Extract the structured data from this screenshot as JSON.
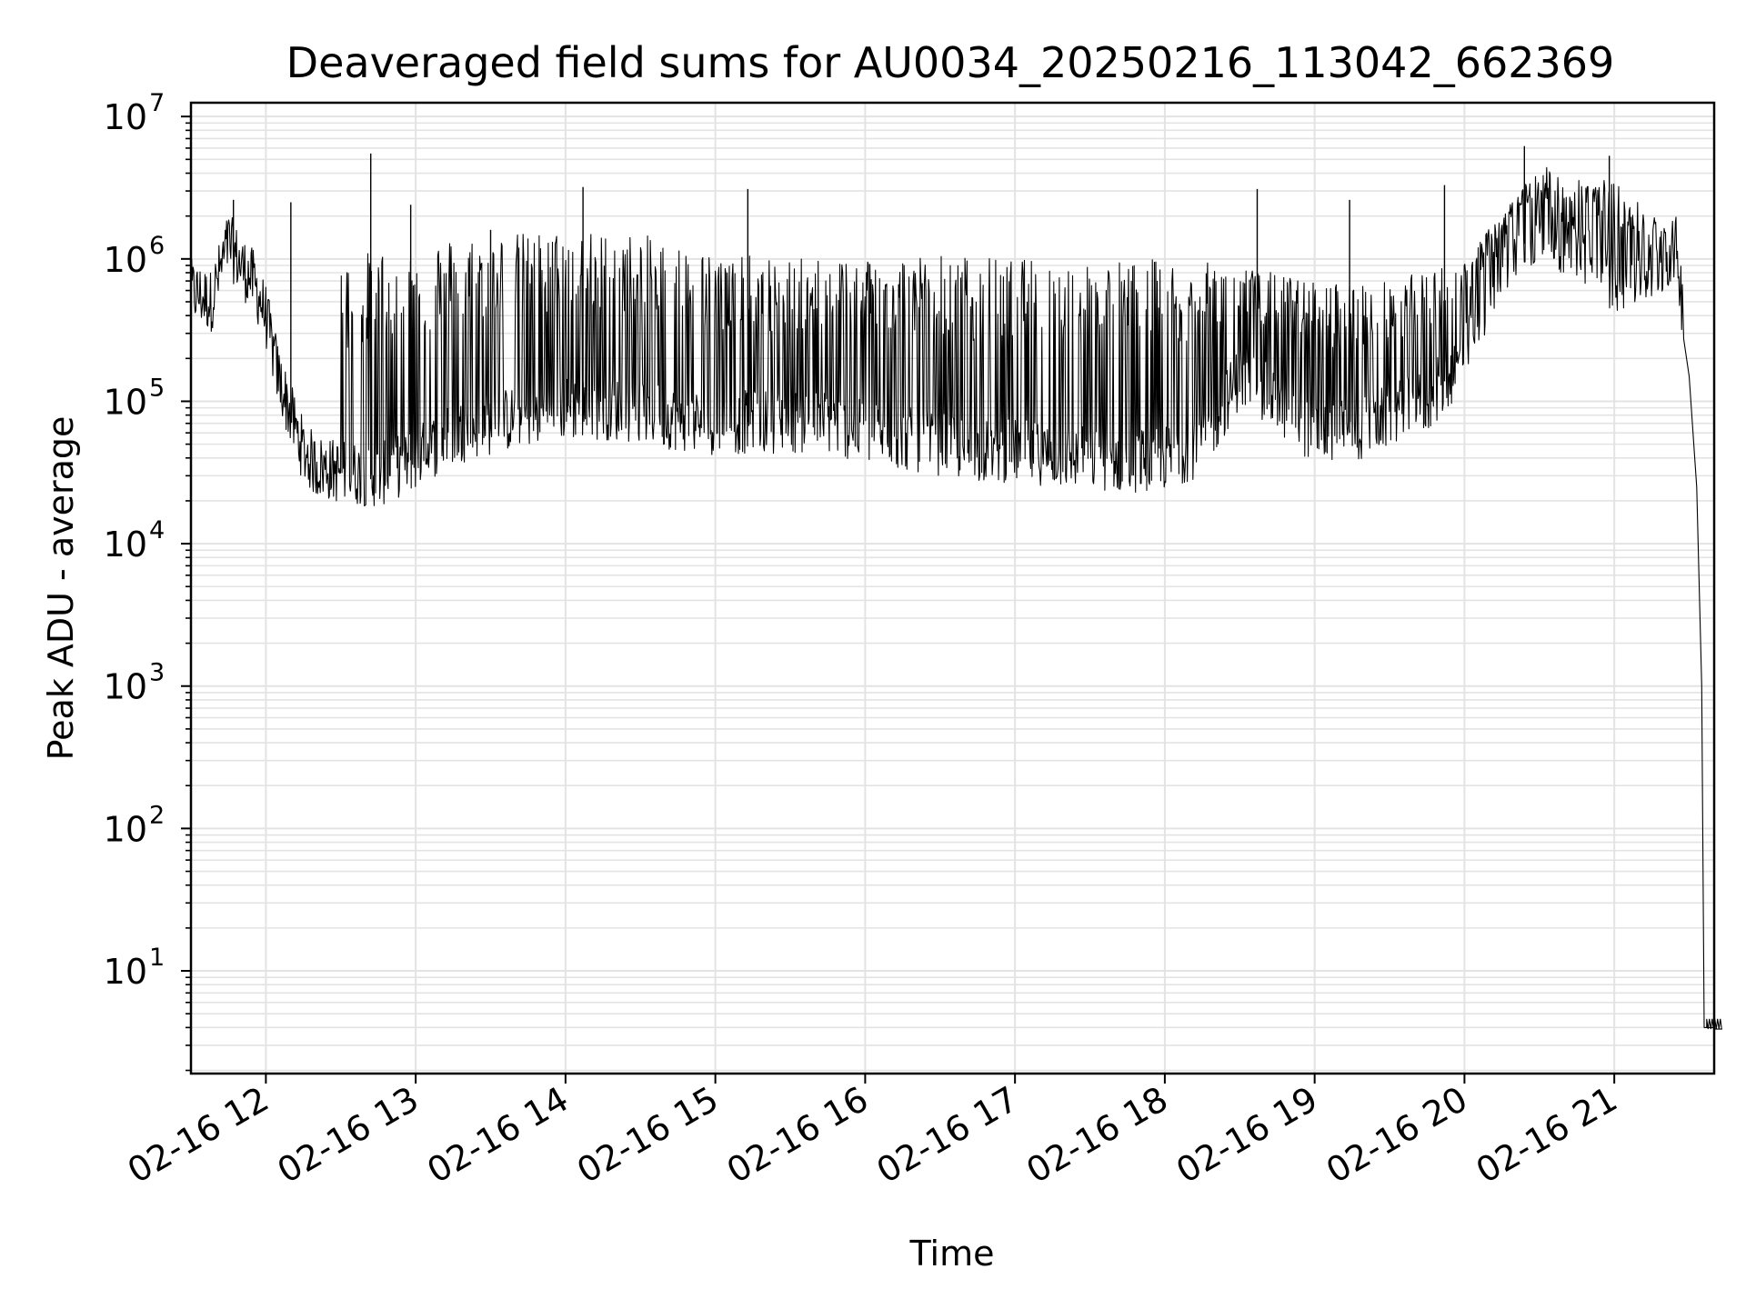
{
  "chart_data": {
    "type": "line",
    "title": "Deaveraged field sums for AU0034_20250216_113042_662369",
    "xlabel": "Time",
    "ylabel": "Peak ADU - average",
    "yscale": "log",
    "xlim": [
      "2025-02-16 11:30",
      "2025-02-16 21:40"
    ],
    "ylim": [
      1.9,
      12500000
    ],
    "grid": true,
    "grid_minor": true,
    "line_color": "#000000",
    "grid_color": "#e3e3e3",
    "x_tick_labels": [
      "02-16 12",
      "02-16 13",
      "02-16 14",
      "02-16 15",
      "02-16 16",
      "02-16 17",
      "02-16 18",
      "02-16 19",
      "02-16 20",
      "02-16 21"
    ],
    "x_ticks": [
      "2025-02-16 12:00",
      "2025-02-16 13:00",
      "2025-02-16 14:00",
      "2025-02-16 15:00",
      "2025-02-16 16:00",
      "2025-02-16 17:00",
      "2025-02-16 18:00",
      "2025-02-16 19:00",
      "2025-02-16 20:00",
      "2025-02-16 21:00"
    ],
    "y_tick_labels": [
      {
        "base": "10",
        "exp": "1",
        "value": 10
      },
      {
        "base": "10",
        "exp": "2",
        "value": 100
      },
      {
        "base": "10",
        "exp": "3",
        "value": 1000
      },
      {
        "base": "10",
        "exp": "4",
        "value": 10000
      },
      {
        "base": "10",
        "exp": "5",
        "value": 100000
      },
      {
        "base": "10",
        "exp": "6",
        "value": 1000000
      },
      {
        "base": "10",
        "exp": "7",
        "value": 10000000
      }
    ],
    "series": [
      {
        "x": [
          "2025-02-16 11:30",
          "2025-02-16 11:38",
          "2025-02-16 11:45",
          "2025-02-16 11:50",
          "2025-02-16 11:55",
          "2025-02-16 12:00",
          "2025-02-16 12:05",
          "2025-02-16 12:10",
          "2025-02-16 12:15",
          "2025-02-16 12:20",
          "2025-02-16 12:30",
          "2025-02-16 12:45",
          "2025-02-16 13:00",
          "2025-02-16 13:15",
          "2025-02-16 13:30",
          "2025-02-16 13:45",
          "2025-02-16 14:00",
          "2025-02-16 14:15",
          "2025-02-16 14:30",
          "2025-02-16 14:45",
          "2025-02-16 15:00",
          "2025-02-16 15:15",
          "2025-02-16 15:30",
          "2025-02-16 15:45",
          "2025-02-16 16:00",
          "2025-02-16 16:15",
          "2025-02-16 16:30",
          "2025-02-16 16:45",
          "2025-02-16 17:00",
          "2025-02-16 17:15",
          "2025-02-16 17:30",
          "2025-02-16 17:45",
          "2025-02-16 18:00",
          "2025-02-16 18:15",
          "2025-02-16 18:30",
          "2025-02-16 18:45",
          "2025-02-16 19:00",
          "2025-02-16 19:15",
          "2025-02-16 19:30",
          "2025-02-16 19:45",
          "2025-02-16 20:00",
          "2025-02-16 20:15",
          "2025-02-16 20:30",
          "2025-02-16 20:45",
          "2025-02-16 21:00",
          "2025-02-16 21:15",
          "2025-02-16 21:25",
          "2025-02-16 21:30",
          "2025-02-16 21:33",
          "2025-02-16 21:35",
          "2025-02-16 21:36",
          "2025-02-16 21:37",
          "2025-02-16 21:40"
        ],
        "y": [
          600000,
          500000,
          1300000,
          900000,
          700000,
          400000,
          150000,
          80000,
          45000,
          35000,
          32000,
          30000,
          40000,
          60000,
          70000,
          80000,
          90000,
          90000,
          85000,
          75000,
          70000,
          72000,
          72000,
          72000,
          60000,
          55000,
          50000,
          45000,
          45000,
          42000,
          40000,
          38000,
          40000,
          50000,
          150000,
          100000,
          60000,
          60000,
          80000,
          100000,
          200000,
          1000000,
          1500000,
          1200000,
          700000,
          800000,
          1200000,
          150000,
          25000,
          1000,
          4,
          4,
          4
        ],
        "spikes": [
          {
            "x": "2025-02-16 11:47",
            "y": 2600000
          },
          {
            "x": "2025-02-16 12:10",
            "y": 2500000
          },
          {
            "x": "2025-02-16 12:42",
            "y": 5500000
          },
          {
            "x": "2025-02-16 12:58",
            "y": 2400000
          },
          {
            "x": "2025-02-16 13:30",
            "y": 1600000
          },
          {
            "x": "2025-02-16 14:07",
            "y": 3200000
          },
          {
            "x": "2025-02-16 15:13",
            "y": 3100000
          },
          {
            "x": "2025-02-16 18:37",
            "y": 3100000
          },
          {
            "x": "2025-02-16 19:14",
            "y": 2600000
          },
          {
            "x": "2025-02-16 19:52",
            "y": 3300000
          },
          {
            "x": "2025-02-16 20:24",
            "y": 6200000
          },
          {
            "x": "2025-02-16 20:58",
            "y": 5300000
          }
        ],
        "band_upper": [
          {
            "x": "2025-02-16 12:30",
            "y": 1000000
          },
          {
            "x": "2025-02-16 13:00",
            "y": 1400000
          },
          {
            "x": "2025-02-16 13:30",
            "y": 1500000
          },
          {
            "x": "2025-02-16 14:00",
            "y": 1600000
          },
          {
            "x": "2025-02-16 14:30",
            "y": 1500000
          },
          {
            "x": "2025-02-16 15:00",
            "y": 1100000
          },
          {
            "x": "2025-02-16 15:30",
            "y": 1000000
          },
          {
            "x": "2025-02-16 16:00",
            "y": 1100000
          },
          {
            "x": "2025-02-16 16:30",
            "y": 1100000
          },
          {
            "x": "2025-02-16 17:00",
            "y": 1000000
          },
          {
            "x": "2025-02-16 17:30",
            "y": 1000000
          },
          {
            "x": "2025-02-16 18:00",
            "y": 1000000
          },
          {
            "x": "2025-02-16 18:30",
            "y": 900000
          },
          {
            "x": "2025-02-16 19:00",
            "y": 700000
          },
          {
            "x": "2025-02-16 19:30",
            "y": 700000
          },
          {
            "x": "2025-02-16 20:00",
            "y": 1000000
          },
          {
            "x": "2025-02-16 20:30",
            "y": 4500000
          },
          {
            "x": "2025-02-16 21:00",
            "y": 3500000
          },
          {
            "x": "2025-02-16 21:25",
            "y": 1500000
          }
        ]
      }
    ]
  }
}
